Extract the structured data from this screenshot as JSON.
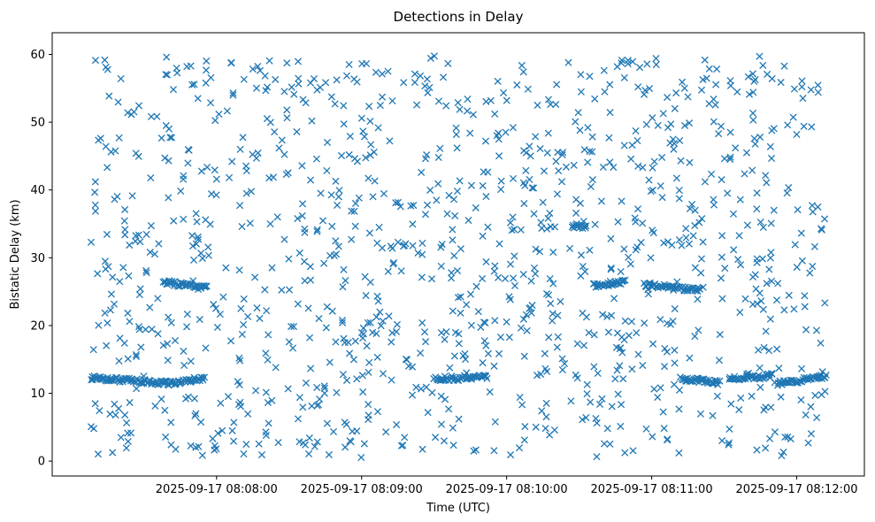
{
  "chart_data": {
    "type": "scatter",
    "title": "Detections in Delay",
    "xlabel": "Time (UTC)",
    "ylabel": "Bistatic Delay (km)",
    "xlim": [
      "2025-09-17 08:06:52",
      "2025-09-17 08:12:28"
    ],
    "ylim": [
      -2.2,
      63.2
    ],
    "xticks": [
      {
        "value": "2025-09-17 08:08:00",
        "label": "2025-09-17 08:08:00"
      },
      {
        "value": "2025-09-17 08:09:00",
        "label": "2025-09-17 08:09:00"
      },
      {
        "value": "2025-09-17 08:10:00",
        "label": "2025-09-17 08:10:00"
      },
      {
        "value": "2025-09-17 08:11:00",
        "label": "2025-09-17 08:11:00"
      },
      {
        "value": "2025-09-17 08:12:00",
        "label": "2025-09-17 08:12:00"
      }
    ],
    "yticks": [
      0,
      10,
      20,
      30,
      40,
      50,
      60
    ],
    "marker": "x",
    "color": "#1f77b4",
    "grid": false,
    "series": [
      {
        "x_start": "2025-09-17 08:07:08",
        "x_end": "2025-09-17 08:12:12",
        "tracks": [
          {
            "x_from": "2025-09-17 08:07:08",
            "x_to": "2025-09-17 08:07:43",
            "y_from": 12.3,
            "y_to": 11.4
          },
          {
            "x_from": "2025-09-17 08:07:43",
            "x_to": "2025-09-17 08:07:55",
            "y_from": 11.6,
            "y_to": 12.2
          },
          {
            "x_from": "2025-09-17 08:07:38",
            "x_to": "2025-09-17 08:07:56",
            "y_from": 26.4,
            "y_to": 25.5
          },
          {
            "x_from": "2025-09-17 08:09:30",
            "x_to": "2025-09-17 08:09:52",
            "y_from": 12.1,
            "y_to": 12.4
          },
          {
            "x_from": "2025-09-17 08:10:27",
            "x_to": "2025-09-17 08:10:33",
            "y_from": 34.8,
            "y_to": 34.4
          },
          {
            "x_from": "2025-09-17 08:10:36",
            "x_to": "2025-09-17 08:10:49",
            "y_from": 25.9,
            "y_to": 26.5
          },
          {
            "x_from": "2025-09-17 08:10:57",
            "x_to": "2025-09-17 08:11:20",
            "y_from": 26.1,
            "y_to": 25.2
          },
          {
            "x_from": "2025-09-17 08:11:12",
            "x_to": "2025-09-17 08:11:28",
            "y_from": 12.2,
            "y_to": 11.5
          },
          {
            "x_from": "2025-09-17 08:11:32",
            "x_to": "2025-09-17 08:11:50",
            "y_from": 12.1,
            "y_to": 12.6
          },
          {
            "x_from": "2025-09-17 08:11:52",
            "x_to": "2025-09-17 08:12:12",
            "y_from": 11.5,
            "y_to": 12.4
          }
        ],
        "noise": {
          "count": 1150,
          "y_min": 0.5,
          "y_max": 60
        }
      }
    ]
  }
}
